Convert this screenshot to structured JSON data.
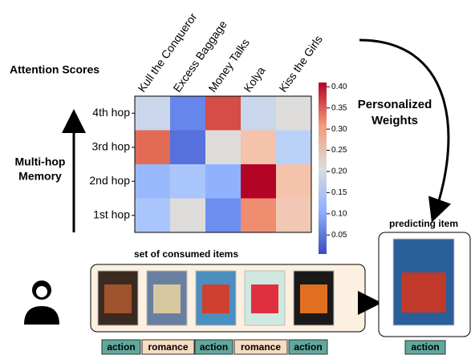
{
  "labels": {
    "attention": "Attention Scores",
    "memory": [
      "Multi-hop",
      "Memory"
    ],
    "weights": [
      "Personalized",
      "Weights"
    ],
    "predicting": "predicting item",
    "consumed": "set of consumed items"
  },
  "heatmap": {
    "columns": [
      "Kull the Conqueror",
      "Excess Baggage",
      "Money Talks",
      "Kolya",
      "Kiss the Girls"
    ],
    "rows": [
      "4th hop",
      "3rd hop",
      "2nd hop",
      "1st hop"
    ],
    "values": [
      [
        0.18,
        0.06,
        0.37,
        0.18,
        0.21
      ],
      [
        0.35,
        0.04,
        0.21,
        0.26,
        0.16
      ],
      [
        0.12,
        0.14,
        0.11,
        0.41,
        0.26
      ],
      [
        0.14,
        0.21,
        0.07,
        0.32,
        0.25
      ]
    ],
    "clim": [
      0.005,
      0.41
    ],
    "cticks": [
      {
        "value": 0.05,
        "label": "0.05"
      },
      {
        "value": 0.1,
        "label": "0.10"
      },
      {
        "value": 0.15,
        "label": "0.15"
      },
      {
        "value": 0.2,
        "label": "0.20"
      },
      {
        "value": 0.25,
        "label": "0.25"
      },
      {
        "value": 0.3,
        "label": "0.30"
      },
      {
        "value": 0.35,
        "label": "0.35"
      },
      {
        "value": 0.4,
        "label": "0.40"
      }
    ]
  },
  "genres": [
    "action",
    "romance",
    "action",
    "romance",
    "action"
  ],
  "predicted_genre": "action"
}
